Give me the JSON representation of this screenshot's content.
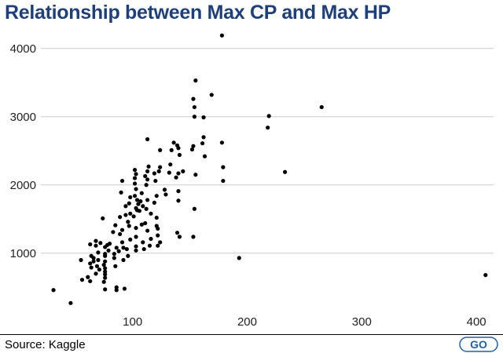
{
  "title": "Relationship between Max CP and Max HP",
  "source": "Source: Kaggle",
  "logo_text": "GO",
  "colors": {
    "title": "#1f3f7a",
    "points": "#000000",
    "grid": "#cccccc",
    "logo": "#1f5fa8"
  },
  "chart_data": {
    "type": "scatter",
    "title": "Relationship between Max CP and Max HP",
    "xlabel": "",
    "ylabel": "",
    "xlim": [
      20,
      415
    ],
    "ylim": [
      170,
      4250
    ],
    "xticks": [
      100,
      200,
      300,
      400
    ],
    "yticks": [
      1000,
      2000,
      3000,
      4000
    ],
    "grid": "horizontal",
    "legend": "none",
    "points": [
      [
        178,
        4190
      ],
      [
        155,
        3530
      ],
      [
        169,
        3320
      ],
      [
        153,
        3260
      ],
      [
        154,
        3140
      ],
      [
        265,
        3140
      ],
      [
        219,
        3010
      ],
      [
        154,
        3000
      ],
      [
        162,
        2990
      ],
      [
        218,
        2840
      ],
      [
        113,
        2670
      ],
      [
        162,
        2700
      ],
      [
        136,
        2620
      ],
      [
        139,
        2580
      ],
      [
        161,
        2610
      ],
      [
        178,
        2620
      ],
      [
        153,
        2570
      ],
      [
        140,
        2540
      ],
      [
        134,
        2510
      ],
      [
        152,
        2520
      ],
      [
        124,
        2510
      ],
      [
        141,
        2440
      ],
      [
        163,
        2420
      ],
      [
        133,
        2300
      ],
      [
        114,
        2270
      ],
      [
        124,
        2260
      ],
      [
        102,
        2220
      ],
      [
        113,
        2200
      ],
      [
        103,
        2160
      ],
      [
        123,
        2200
      ],
      [
        179,
        2260
      ],
      [
        233,
        2190
      ],
      [
        119,
        2170
      ],
      [
        132,
        2180
      ],
      [
        144,
        2200
      ],
      [
        140,
        2170
      ],
      [
        102,
        2100
      ],
      [
        111,
        2130
      ],
      [
        155,
        2150
      ],
      [
        138,
        2110
      ],
      [
        113,
        2080
      ],
      [
        120,
        2060
      ],
      [
        179,
        2060
      ],
      [
        91,
        2060
      ],
      [
        102,
        2020
      ],
      [
        112,
        2000
      ],
      [
        128,
        1930
      ],
      [
        103,
        1940
      ],
      [
        140,
        1910
      ],
      [
        90,
        1890
      ],
      [
        108,
        1880
      ],
      [
        121,
        1840
      ],
      [
        102,
        1840
      ],
      [
        129,
        1860
      ],
      [
        98,
        1820
      ],
      [
        104,
        1780
      ],
      [
        113,
        1780
      ],
      [
        107,
        1760
      ],
      [
        140,
        1770
      ],
      [
        119,
        1740
      ],
      [
        97,
        1730
      ],
      [
        105,
        1720
      ],
      [
        94,
        1690
      ],
      [
        109,
        1690
      ],
      [
        103,
        1660
      ],
      [
        112,
        1650
      ],
      [
        104,
        1630
      ],
      [
        154,
        1650
      ],
      [
        106,
        1620
      ],
      [
        98,
        1580
      ],
      [
        116,
        1580
      ],
      [
        94,
        1560
      ],
      [
        101,
        1540
      ],
      [
        89,
        1530
      ],
      [
        121,
        1520
      ],
      [
        74,
        1510
      ],
      [
        96,
        1460
      ],
      [
        111,
        1440
      ],
      [
        108,
        1420
      ],
      [
        85,
        1410
      ],
      [
        97,
        1400
      ],
      [
        121,
        1400
      ],
      [
        103,
        1370
      ],
      [
        122,
        1360
      ],
      [
        91,
        1340
      ],
      [
        113,
        1330
      ],
      [
        83,
        1310
      ],
      [
        139,
        1300
      ],
      [
        89,
        1280
      ],
      [
        122,
        1260
      ],
      [
        103,
        1240
      ],
      [
        141,
        1240
      ],
      [
        153,
        1240
      ],
      [
        68,
        1180
      ],
      [
        98,
        1200
      ],
      [
        116,
        1210
      ],
      [
        91,
        1160
      ],
      [
        109,
        1160
      ],
      [
        124,
        1160
      ],
      [
        63,
        1130
      ],
      [
        72,
        1150
      ],
      [
        80,
        1140
      ],
      [
        68,
        1110
      ],
      [
        78,
        1120
      ],
      [
        103,
        1100
      ],
      [
        115,
        1110
      ],
      [
        122,
        1110
      ],
      [
        76,
        1090
      ],
      [
        86,
        1080
      ],
      [
        92,
        1080
      ],
      [
        95,
        1060
      ],
      [
        110,
        1060
      ],
      [
        79,
        1040
      ],
      [
        88,
        1030
      ],
      [
        103,
        1040
      ],
      [
        70,
        1010
      ],
      [
        76,
        990
      ],
      [
        84,
        990
      ],
      [
        64,
        960
      ],
      [
        76,
        960
      ],
      [
        96,
        960
      ],
      [
        66,
        930
      ],
      [
        84,
        930
      ],
      [
        55,
        900
      ],
      [
        70,
        900
      ],
      [
        92,
        900
      ],
      [
        193,
        930
      ],
      [
        66,
        880
      ],
      [
        76,
        880
      ],
      [
        63,
        850
      ],
      [
        75,
        830
      ],
      [
        69,
        810
      ],
      [
        85,
        810
      ],
      [
        64,
        790
      ],
      [
        76,
        780
      ],
      [
        71,
        760
      ],
      [
        76,
        730
      ],
      [
        68,
        700
      ],
      [
        76,
        690
      ],
      [
        61,
        650
      ],
      [
        76,
        640
      ],
      [
        56,
        610
      ],
      [
        63,
        590
      ],
      [
        75,
        580
      ],
      [
        408,
        680
      ],
      [
        86,
        500
      ],
      [
        93,
        480
      ],
      [
        76,
        470
      ],
      [
        86,
        460
      ],
      [
        31,
        460
      ],
      [
        46,
        270
      ]
    ]
  }
}
